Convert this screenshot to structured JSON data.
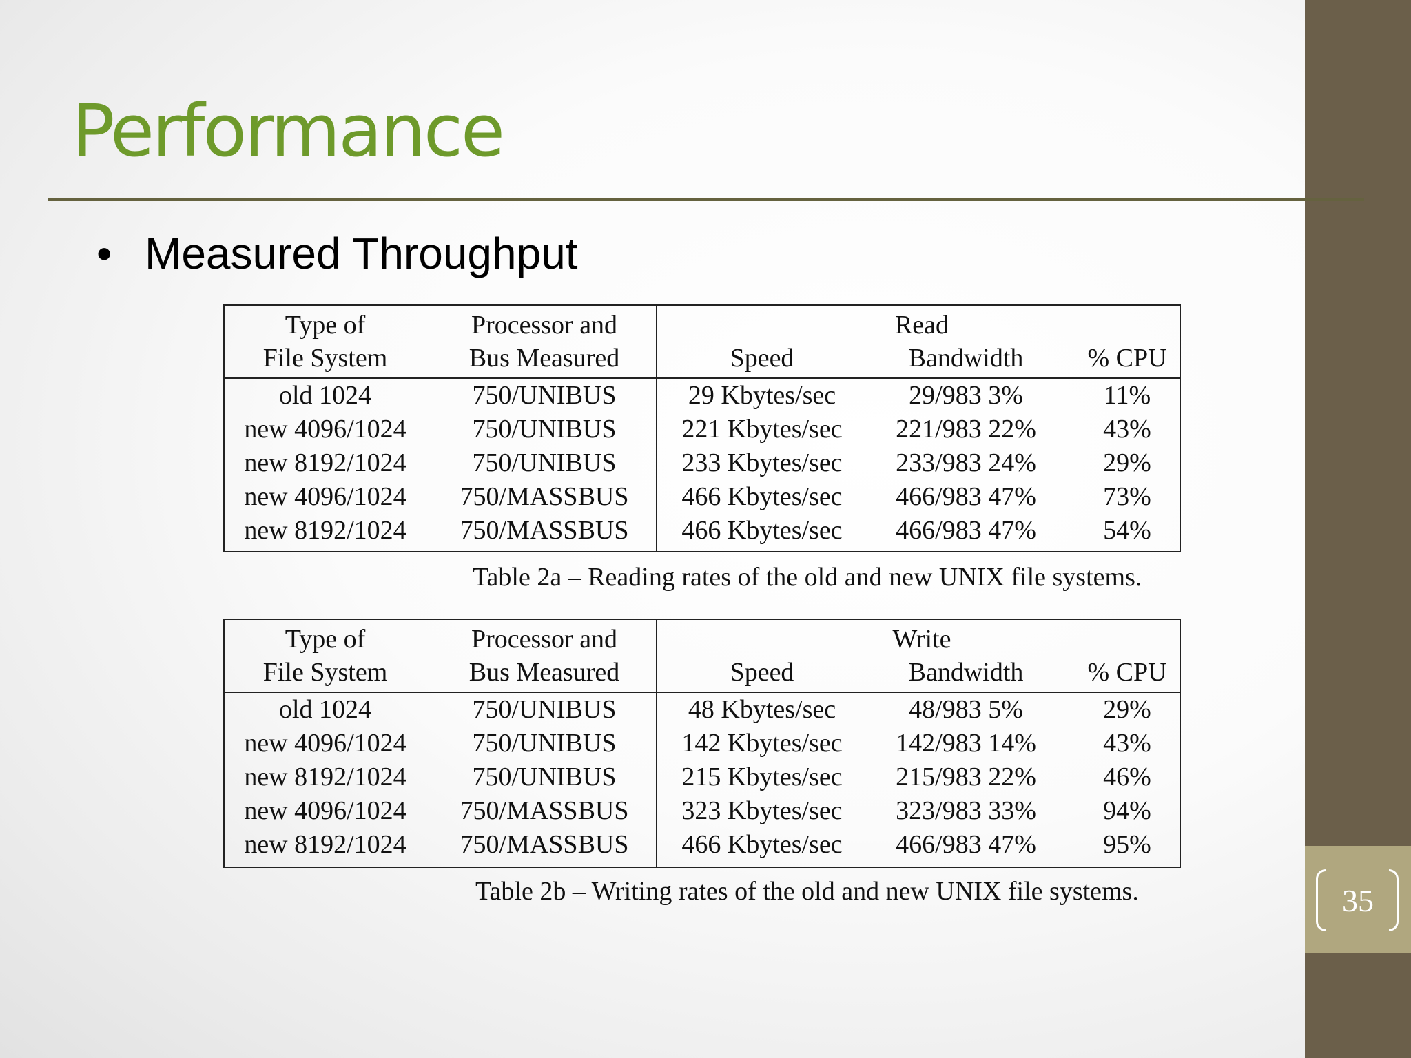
{
  "slide": {
    "title": "Performance",
    "bullet": "Measured Throughput",
    "page_number": "35"
  },
  "table_read": {
    "headers": {
      "type_of_fs": [
        "Type of",
        "File System"
      ],
      "processor_bus": [
        "Processor and",
        "Bus Measured"
      ],
      "group": "Read",
      "speed": "Speed",
      "bandwidth": "Bandwidth",
      "cpu": "% CPU"
    },
    "rows": [
      [
        "old 1024",
        "750/UNIBUS",
        "29 Kbytes/sec",
        "29/983 3%",
        "11%"
      ],
      [
        "new 4096/1024",
        "750/UNIBUS",
        "221 Kbytes/sec",
        "221/983 22%",
        "43%"
      ],
      [
        "new 8192/1024",
        "750/UNIBUS",
        "233 Kbytes/sec",
        "233/983 24%",
        "29%"
      ],
      [
        "new 4096/1024",
        "750/MASSBUS",
        "466 Kbytes/sec",
        "466/983 47%",
        "73%"
      ],
      [
        "new 8192/1024",
        "750/MASSBUS",
        "466 Kbytes/sec",
        "466/983 47%",
        "54%"
      ]
    ],
    "caption": "Table 2a – Reading rates of the old and new UNIX file systems."
  },
  "table_write": {
    "headers": {
      "type_of_fs": [
        "Type of",
        "File System"
      ],
      "processor_bus": [
        "Processor and",
        "Bus Measured"
      ],
      "group": "Write",
      "speed": "Speed",
      "bandwidth": "Bandwidth",
      "cpu": "% CPU"
    },
    "rows": [
      [
        "old 1024",
        "750/UNIBUS",
        "48 Kbytes/sec",
        "48/983 5%",
        "29%"
      ],
      [
        "new 4096/1024",
        "750/UNIBUS",
        "142 Kbytes/sec",
        "142/983 14%",
        "43%"
      ],
      [
        "new 8192/1024",
        "750/UNIBUS",
        "215 Kbytes/sec",
        "215/983 22%",
        "46%"
      ],
      [
        "new 4096/1024",
        "750/MASSBUS",
        "323 Kbytes/sec",
        "323/983 33%",
        "94%"
      ],
      [
        "new 8192/1024",
        "750/MASSBUS",
        "466 Kbytes/sec",
        "466/983 47%",
        "95%"
      ]
    ],
    "caption": "Table 2b – Writing rates of the old and new UNIX file systems."
  },
  "colors": {
    "title": "#6e9a2b",
    "sidebar": "#6b5f4a",
    "page_box": "#b0a77f",
    "rule": "#65623f"
  }
}
